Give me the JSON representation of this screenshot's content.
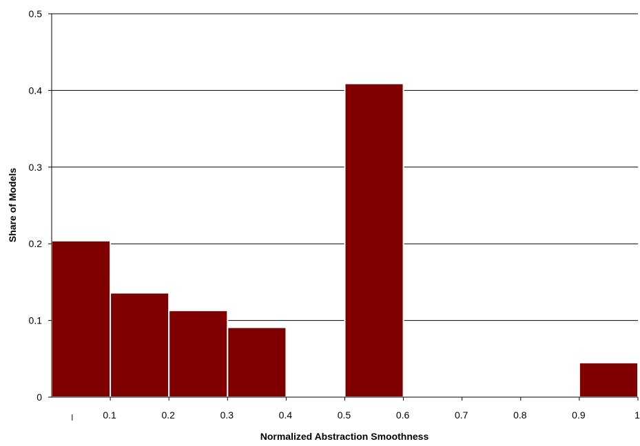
{
  "chart_data": {
    "type": "bar",
    "title": "",
    "xlabel": "Normalized Abstraction Smoothness",
    "ylabel": "Share of Models",
    "x_ticks": [
      "0.1",
      "0.2",
      "0.3",
      "0.4",
      "0.5",
      "0.6",
      "0.7",
      "0.8",
      "0.9",
      "1"
    ],
    "y_ticks": [
      "0",
      "0.1",
      "0.2",
      "0.3",
      "0.4",
      "0.5"
    ],
    "ylim": [
      0,
      0.5
    ],
    "xlim": [
      0,
      1
    ],
    "bin_width": 0.1,
    "bins": [
      {
        "start": 0.0,
        "end": 0.1,
        "value": 0.204
      },
      {
        "start": 0.1,
        "end": 0.2,
        "value": 0.136
      },
      {
        "start": 0.2,
        "end": 0.3,
        "value": 0.113
      },
      {
        "start": 0.3,
        "end": 0.4,
        "value": 0.091
      },
      {
        "start": 0.4,
        "end": 0.5,
        "value": 0.0
      },
      {
        "start": 0.5,
        "end": 0.6,
        "value": 0.409
      },
      {
        "start": 0.6,
        "end": 0.7,
        "value": 0.0
      },
      {
        "start": 0.7,
        "end": 0.8,
        "value": 0.0
      },
      {
        "start": 0.8,
        "end": 0.9,
        "value": 0.0
      },
      {
        "start": 0.9,
        "end": 1.0,
        "value": 0.045
      }
    ],
    "grid": true,
    "legend": "none",
    "colors": {
      "bar": "#800000",
      "bar_edge": "#ffffff",
      "grid": "#000000",
      "axis": "#000000"
    }
  }
}
